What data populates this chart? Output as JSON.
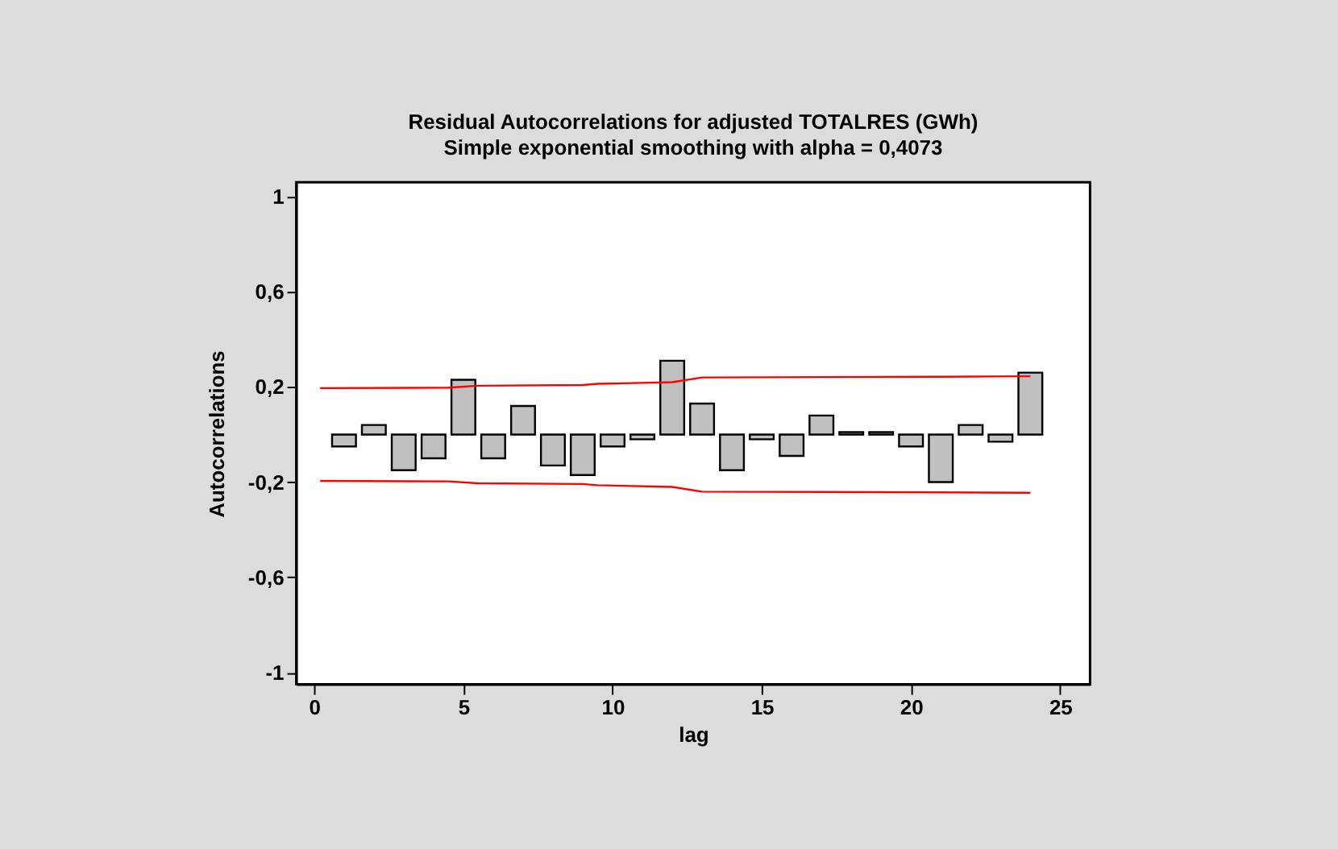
{
  "chart_data": {
    "type": "bar",
    "title": "Residual Autocorrelations for adjusted TOTALRES (GWh)",
    "subtitle": "Simple exponential smoothing with alpha = 0,4073",
    "xlabel": "lag",
    "ylabel": "Autocorrelations",
    "x": [
      1,
      2,
      3,
      4,
      5,
      6,
      7,
      8,
      9,
      10,
      11,
      12,
      13,
      14,
      15,
      16,
      17,
      18,
      19,
      20,
      21,
      22,
      23,
      24
    ],
    "series": [
      {
        "color": "#c0c0c0",
        "values": [
          -0.05,
          0.04,
          -0.15,
          -0.1,
          0.23,
          -0.1,
          0.12,
          -0.13,
          -0.17,
          -0.05,
          -0.02,
          0.31,
          0.13,
          -0.15,
          -0.02,
          -0.09,
          0.08,
          0.01,
          0.01,
          -0.05,
          -0.2,
          0.04,
          -0.03,
          0.26
        ]
      },
      {
        "type": "line",
        "color": "#ff0000",
        "x": [
          0.2,
          4.5,
          5.5,
          9,
          9.5,
          12,
          13,
          21,
          24
        ],
        "values": [
          0.195,
          0.197,
          0.205,
          0.208,
          0.213,
          0.22,
          0.24,
          0.243,
          0.245
        ]
      },
      {
        "type": "line",
        "color": "#ff0000",
        "x": [
          0.2,
          4.5,
          5.5,
          9,
          9.5,
          12,
          13,
          21,
          24
        ],
        "values": [
          -0.195,
          -0.197,
          -0.205,
          -0.208,
          -0.213,
          -0.22,
          -0.24,
          -0.243,
          -0.245
        ]
      }
    ],
    "xlim": [
      -0.6,
      26
    ],
    "xticks": [
      0,
      5,
      10,
      15,
      20,
      25
    ],
    "ylim": [
      -1.05,
      1.06
    ],
    "yticks": [
      {
        "value": -1,
        "label": "-1"
      },
      {
        "value": -0.6,
        "label": "-0,6"
      },
      {
        "value": -0.2,
        "label": "-0,2"
      },
      {
        "value": 0.2,
        "label": "0,2"
      },
      {
        "value": 0.6,
        "label": "0,6"
      },
      {
        "value": 1,
        "label": "1"
      }
    ],
    "grid": false
  }
}
